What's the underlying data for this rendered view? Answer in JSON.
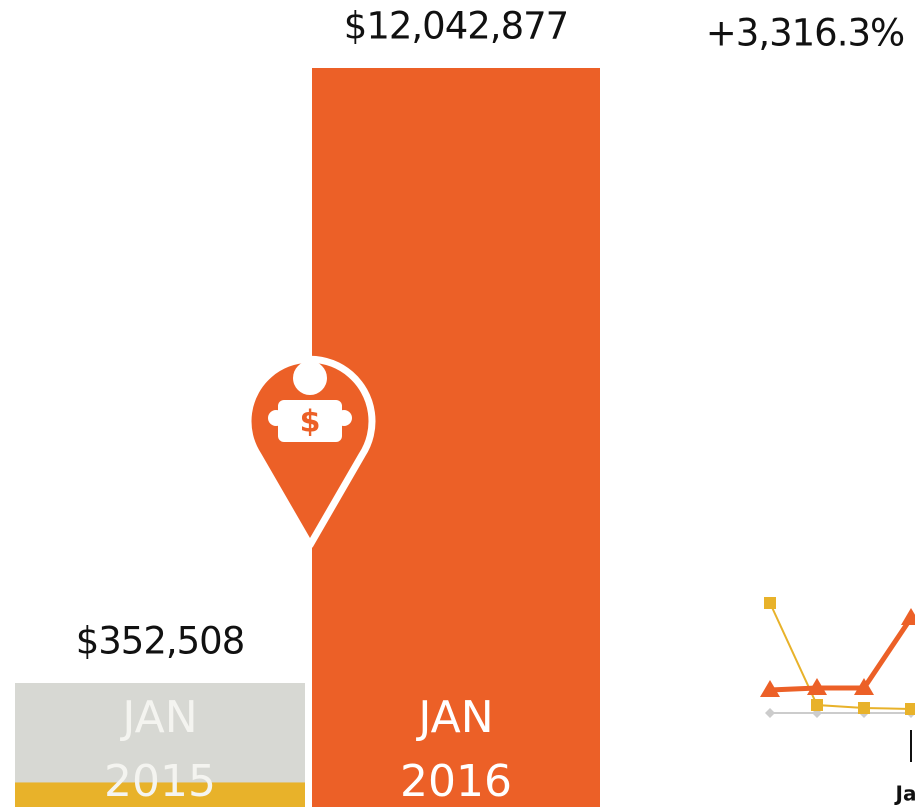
{
  "chart_data": [
    {
      "type": "bar",
      "categories": [
        "JAN 2015",
        "JAN 2016"
      ],
      "values": [
        352508,
        12042877
      ],
      "value_labels": [
        "$352,508",
        "$12,042,877"
      ],
      "colors": [
        "#e8b22a",
        "#ec6027"
      ],
      "change_label": "+3,316.3%"
    },
    {
      "type": "line",
      "categories": [
        null,
        null,
        null,
        "Ja"
      ],
      "ylim": [
        0,
        115
      ],
      "series": [
        {
          "color": "#ec6027",
          "values": [
            25,
            27,
            27,
            97
          ]
        },
        {
          "color": "#e8b22a",
          "values": [
            112,
            10,
            7,
            6
          ]
        },
        {
          "color": "#cccccc",
          "values": [
            2,
            2,
            2,
            2
          ]
        }
      ]
    }
  ]
}
